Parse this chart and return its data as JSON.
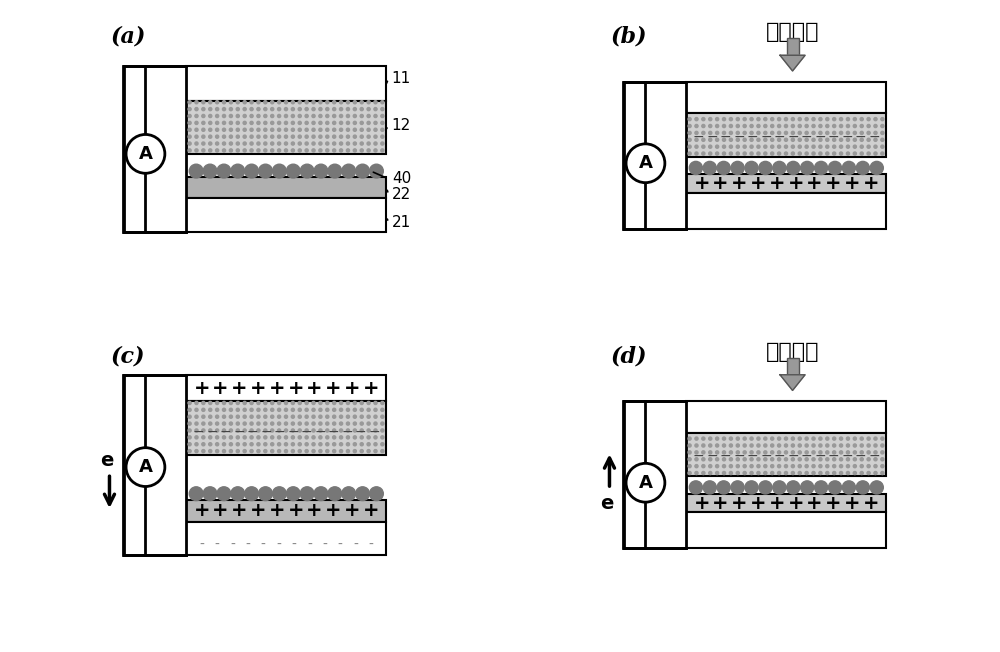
{
  "bg_color": "#ffffff",
  "panel_label_fontsize": 16,
  "panel_labels": [
    "(a)",
    "(b)",
    "(c)",
    "(d)"
  ],
  "chinese_text": "施加外力",
  "ammeter_label": "A",
  "layer_numbers_a": [
    "11",
    "12",
    "40",
    "22",
    "21"
  ],
  "dot_color": "#777777",
  "dotted_layer_color": "#c8c8c8",
  "gray_layer_color": "#aaaaaa",
  "arrow_color": "#888888",
  "wire_color": "#000000",
  "label_fontsize": 11,
  "plus_fontsize": 13,
  "minus_fontsize": 11
}
